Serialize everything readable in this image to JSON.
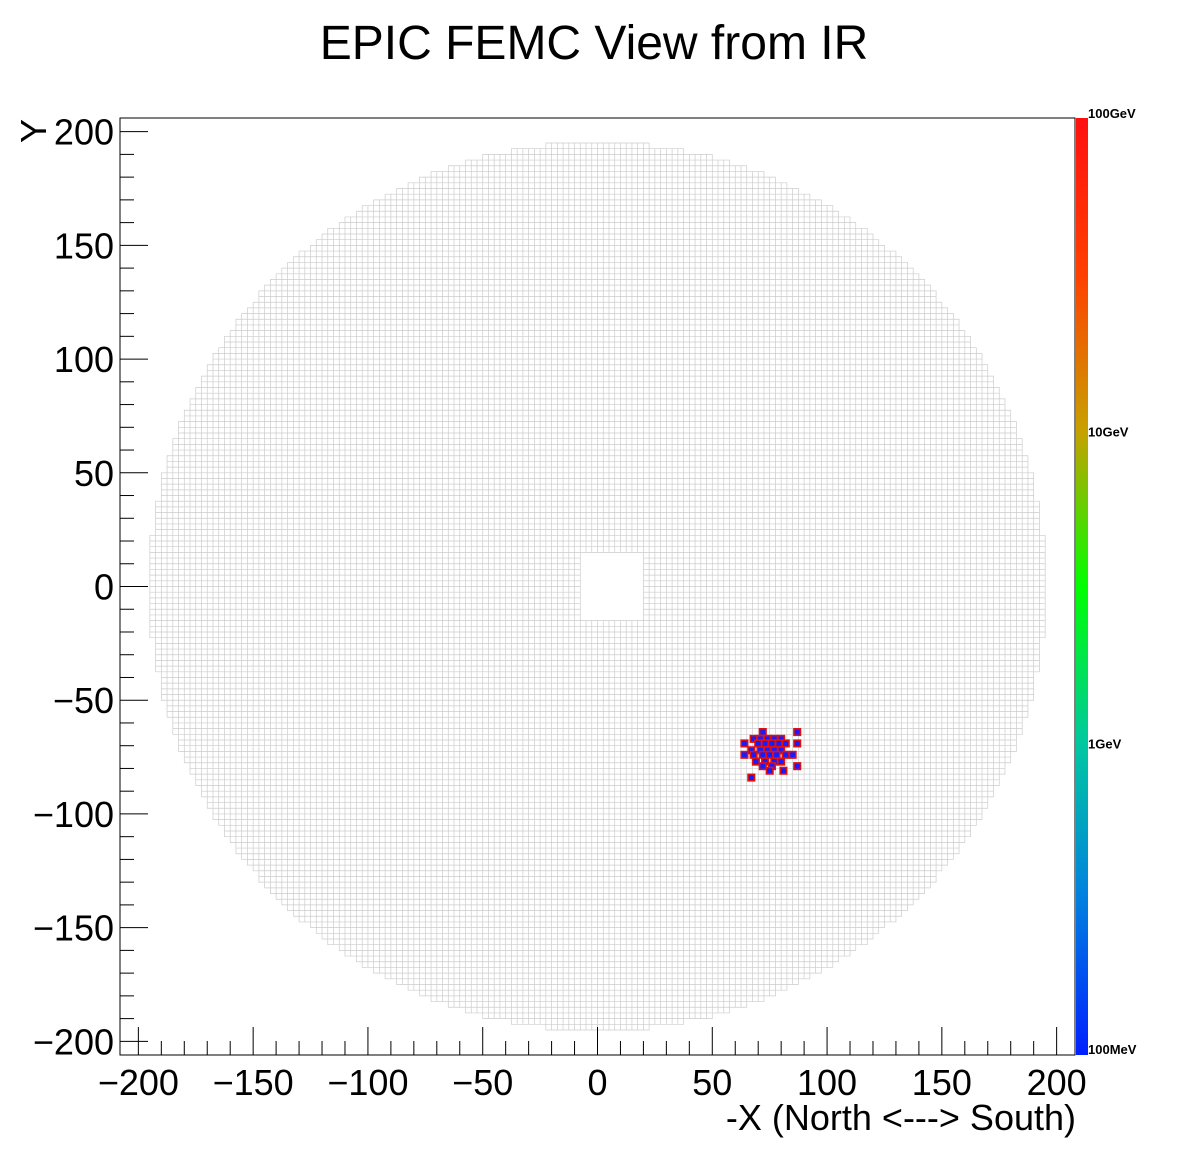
{
  "chart_data": {
    "type": "heatmap",
    "title": "EPIC FEMC View from IR",
    "xlabel": "-X (North <---> South)",
    "ylabel": "Y",
    "xlim": [
      -208,
      208
    ],
    "ylim": [
      -206,
      206
    ],
    "x_ticks": [
      -200,
      -150,
      -100,
      -50,
      0,
      50,
      100,
      150,
      200
    ],
    "y_ticks": [
      -200,
      -150,
      -100,
      -50,
      0,
      50,
      100,
      150,
      200
    ],
    "tick_labels_x": [
      "−200",
      "−150",
      "−100",
      "−50",
      "0",
      "50",
      "100",
      "150",
      "200"
    ],
    "tick_labels_y": [
      "−200",
      "−150",
      "−100",
      "−50",
      "0",
      "50",
      "100",
      "150",
      "200"
    ],
    "detector": {
      "cell_size": 2.5,
      "outer_radius": 195,
      "beam_hole": {
        "x": [
          -8,
          20
        ],
        "y": [
          -15,
          15
        ]
      }
    },
    "colorbar": {
      "scale": "log",
      "labels": [
        "100GeV",
        "10GeV",
        "1GeV",
        "100MeV"
      ],
      "stops": [
        "#0020ff",
        "#0080e0",
        "#00c8a0",
        "#00ff00",
        "#c8a000",
        "#ff4000",
        "#ff1010"
      ]
    },
    "hits": [
      {
        "x": 72,
        "y": -64
      },
      {
        "x": 87,
        "y": -64
      },
      {
        "x": 68,
        "y": -67
      },
      {
        "x": 71,
        "y": -67
      },
      {
        "x": 74,
        "y": -67
      },
      {
        "x": 77,
        "y": -67
      },
      {
        "x": 80,
        "y": -67
      },
      {
        "x": 64,
        "y": -69
      },
      {
        "x": 70,
        "y": -69
      },
      {
        "x": 73,
        "y": -69
      },
      {
        "x": 76,
        "y": -69
      },
      {
        "x": 79,
        "y": -69
      },
      {
        "x": 82,
        "y": -69
      },
      {
        "x": 87,
        "y": -69
      },
      {
        "x": 67,
        "y": -72
      },
      {
        "x": 71,
        "y": -72
      },
      {
        "x": 74,
        "y": -72
      },
      {
        "x": 77,
        "y": -72
      },
      {
        "x": 80,
        "y": -72
      },
      {
        "x": 64,
        "y": -74
      },
      {
        "x": 68,
        "y": -74
      },
      {
        "x": 72,
        "y": -74
      },
      {
        "x": 75,
        "y": -74
      },
      {
        "x": 78,
        "y": -74
      },
      {
        "x": 82,
        "y": -74
      },
      {
        "x": 85,
        "y": -74
      },
      {
        "x": 69,
        "y": -77
      },
      {
        "x": 73,
        "y": -77
      },
      {
        "x": 77,
        "y": -77
      },
      {
        "x": 80,
        "y": -77
      },
      {
        "x": 72,
        "y": -79
      },
      {
        "x": 76,
        "y": -79
      },
      {
        "x": 87,
        "y": -79
      },
      {
        "x": 75,
        "y": -81
      },
      {
        "x": 81,
        "y": -81
      },
      {
        "x": 67,
        "y": -84
      }
    ]
  }
}
